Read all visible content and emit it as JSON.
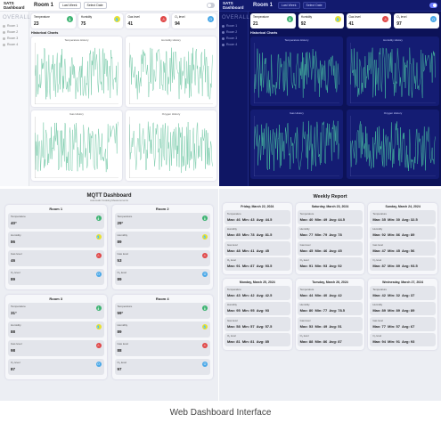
{
  "caption": "Web Dashboard Interface",
  "dashboard": {
    "brand": "SATS Dashboard",
    "room": "Room 1",
    "buttons": [
      "Last Week",
      "Select Date"
    ],
    "sidebar_title": "OVERALL",
    "sidebar_items": [
      "Room 1",
      "Room 2",
      "Room 3",
      "Room 4"
    ],
    "sensors": [
      {
        "label": "Temperature",
        "value": "23",
        "icon": "thermometer-icon",
        "color": "#3cb371",
        "glyph": "🌡"
      },
      {
        "label": "Humidity",
        "value": "75",
        "icon": "humidity-icon",
        "color": "#e8e030",
        "glyph": "💧"
      },
      {
        "label": "Gas level",
        "value": "41",
        "icon": "gas-icon",
        "color": "#e04848",
        "glyph": "⚠"
      },
      {
        "label": "O₂ level",
        "value": "94",
        "icon": "oxygen-icon",
        "color": "#4aa8e8",
        "glyph": "O"
      }
    ],
    "dark_sensor_values": [
      "21",
      "92",
      "41",
      "97"
    ],
    "historical_title": "Historical Charts",
    "charts": [
      "Temperature History",
      "Humidity History",
      "Gas History",
      "Oxygen History"
    ],
    "accent_light": "#5bbf98",
    "accent_dark": "#4fd6a6"
  },
  "mqtt": {
    "title": "MQTT Dashboard",
    "subtitle": "Automatic Cooking Measurements",
    "rooms": [
      {
        "name": "Room 1",
        "values": [
          "40°",
          "86",
          "46",
          "89"
        ]
      },
      {
        "name": "Room 2",
        "values": [
          "29°",
          "89",
          "53",
          "89"
        ]
      },
      {
        "name": "Room 3",
        "values": [
          "31°",
          "88",
          "98",
          "87"
        ]
      },
      {
        "name": "Room 4",
        "values": [
          "59°",
          "89",
          "88",
          "97"
        ]
      }
    ],
    "labels": [
      "Temperature",
      "Humidity",
      "Gas level",
      "O₂ level"
    ]
  },
  "weekly": {
    "title": "Weekly Report",
    "labels": [
      "Temperature",
      "Humidity",
      "Gas level",
      "O₂ level"
    ],
    "days": [
      {
        "name": "Friday, March 22, 2024",
        "rows": [
          [
            "Max: 46",
            "Min: 43",
            "Avg: 44.5"
          ],
          [
            "Max: 85",
            "Min: 78",
            "Avg: 81.5"
          ],
          [
            "Max: 48",
            "Min: 41",
            "Avg: 45"
          ],
          [
            "Max: 91",
            "Min: 87",
            "Avg: 93.5"
          ]
        ]
      },
      {
        "name": "Saturday, March 23, 2024",
        "rows": [
          [
            "Max: 40",
            "Min: 49",
            "Avg: 44.5"
          ],
          [
            "Max: 77",
            "Min: 79",
            "Avg: 78"
          ],
          [
            "Max: 45",
            "Min: 46",
            "Avg: 45"
          ],
          [
            "Max: 91",
            "Min: 93",
            "Avg: 92"
          ]
        ]
      },
      {
        "name": "Sunday, March 24, 2024",
        "rows": [
          [
            "Max: 35",
            "Min: 30",
            "Avg: 32.5"
          ],
          [
            "Max: 92",
            "Min: 86",
            "Avg: 89"
          ],
          [
            "Max: 47",
            "Min: 45",
            "Avg: 56"
          ],
          [
            "Max: 87",
            "Min: 89",
            "Avg: 93.5"
          ]
        ]
      },
      {
        "name": "Monday, March 25, 2024",
        "rows": [
          [
            "Max: 43",
            "Min: 42",
            "Avg: 42.5"
          ],
          [
            "Max: 95",
            "Min: 95",
            "Avg: 93"
          ],
          [
            "Max: 58",
            "Min: 57",
            "Avg: 57.5"
          ],
          [
            "Max: 81",
            "Min: 81",
            "Avg: 85"
          ]
        ]
      },
      {
        "name": "Tuesday, March 26, 2024",
        "rows": [
          [
            "Max: 44",
            "Min: 40",
            "Avg: 42"
          ],
          [
            "Max: 80",
            "Min: 77",
            "Avg: 78.5"
          ],
          [
            "Max: 53",
            "Min: 49",
            "Avg: 51"
          ],
          [
            "Max: 88",
            "Min: 86",
            "Avg: 87"
          ]
        ]
      },
      {
        "name": "Wednesday, March 27, 2024",
        "rows": [
          [
            "Max: 42",
            "Min: 32",
            "Avg: 37"
          ],
          [
            "Max: 89",
            "Min: 89",
            "Avg: 89"
          ],
          [
            "Max: 77",
            "Min: 57",
            "Avg: 67"
          ],
          [
            "Max: 94",
            "Min: 91",
            "Avg: 93"
          ]
        ]
      }
    ]
  }
}
